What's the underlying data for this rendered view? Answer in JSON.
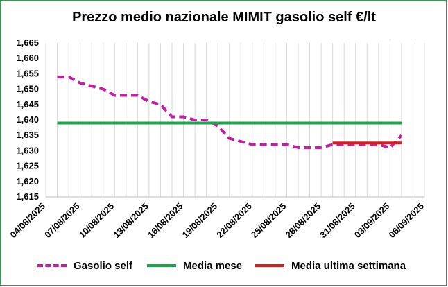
{
  "chart_data": {
    "type": "line",
    "title": "Prezzo medio nazionale MIMIT gasolio self €/lt",
    "xlabel": "",
    "ylabel": "",
    "ylim": [
      1.615,
      1.665
    ],
    "yticks": [
      "1,615",
      "1,620",
      "1,625",
      "1,630",
      "1,635",
      "1,640",
      "1,645",
      "1,650",
      "1,655",
      "1,660",
      "1,665"
    ],
    "xticks": [
      "04/08/2025",
      "07/08/2025",
      "10/08/2025",
      "13/08/2025",
      "16/08/2025",
      "19/08/2025",
      "22/08/2025",
      "25/08/2025",
      "28/08/2025",
      "31/08/2025",
      "03/09/2025",
      "06/09/2025"
    ],
    "x_start": "04/08/2025",
    "grid": "vertical",
    "legend_position": "bottom",
    "series": [
      {
        "name": "Gasolio self",
        "color": "#c21ea3",
        "style": "dashed",
        "x": [
          "05/08/2025",
          "06/08/2025",
          "07/08/2025",
          "08/08/2025",
          "09/08/2025",
          "10/08/2025",
          "11/08/2025",
          "12/08/2025",
          "13/08/2025",
          "14/08/2025",
          "15/08/2025",
          "16/08/2025",
          "17/08/2025",
          "18/08/2025",
          "19/08/2025",
          "20/08/2025",
          "21/08/2025",
          "22/08/2025",
          "23/08/2025",
          "24/08/2025",
          "25/08/2025",
          "26/08/2025",
          "27/08/2025",
          "28/08/2025",
          "29/08/2025",
          "30/08/2025",
          "31/08/2025",
          "01/09/2025",
          "02/09/2025",
          "03/09/2025",
          "04/09/2025"
        ],
        "values": [
          1.654,
          1.654,
          1.652,
          1.651,
          1.65,
          1.648,
          1.648,
          1.648,
          1.646,
          1.645,
          1.641,
          1.641,
          1.64,
          1.64,
          1.638,
          1.634,
          1.633,
          1.632,
          1.632,
          1.632,
          1.632,
          1.631,
          1.631,
          1.631,
          1.632,
          1.632,
          1.632,
          1.632,
          1.632,
          1.631,
          1.635
        ]
      },
      {
        "name": "Media mese",
        "color": "#1aa64a",
        "style": "solid",
        "x": [
          "05/08/2025",
          "04/09/2025"
        ],
        "values": [
          1.639,
          1.639
        ]
      },
      {
        "name": "Media ultima settimana",
        "color": "#e01b1b",
        "style": "solid",
        "x": [
          "29/08/2025",
          "04/09/2025"
        ],
        "values": [
          1.6325,
          1.6325
        ]
      }
    ]
  }
}
